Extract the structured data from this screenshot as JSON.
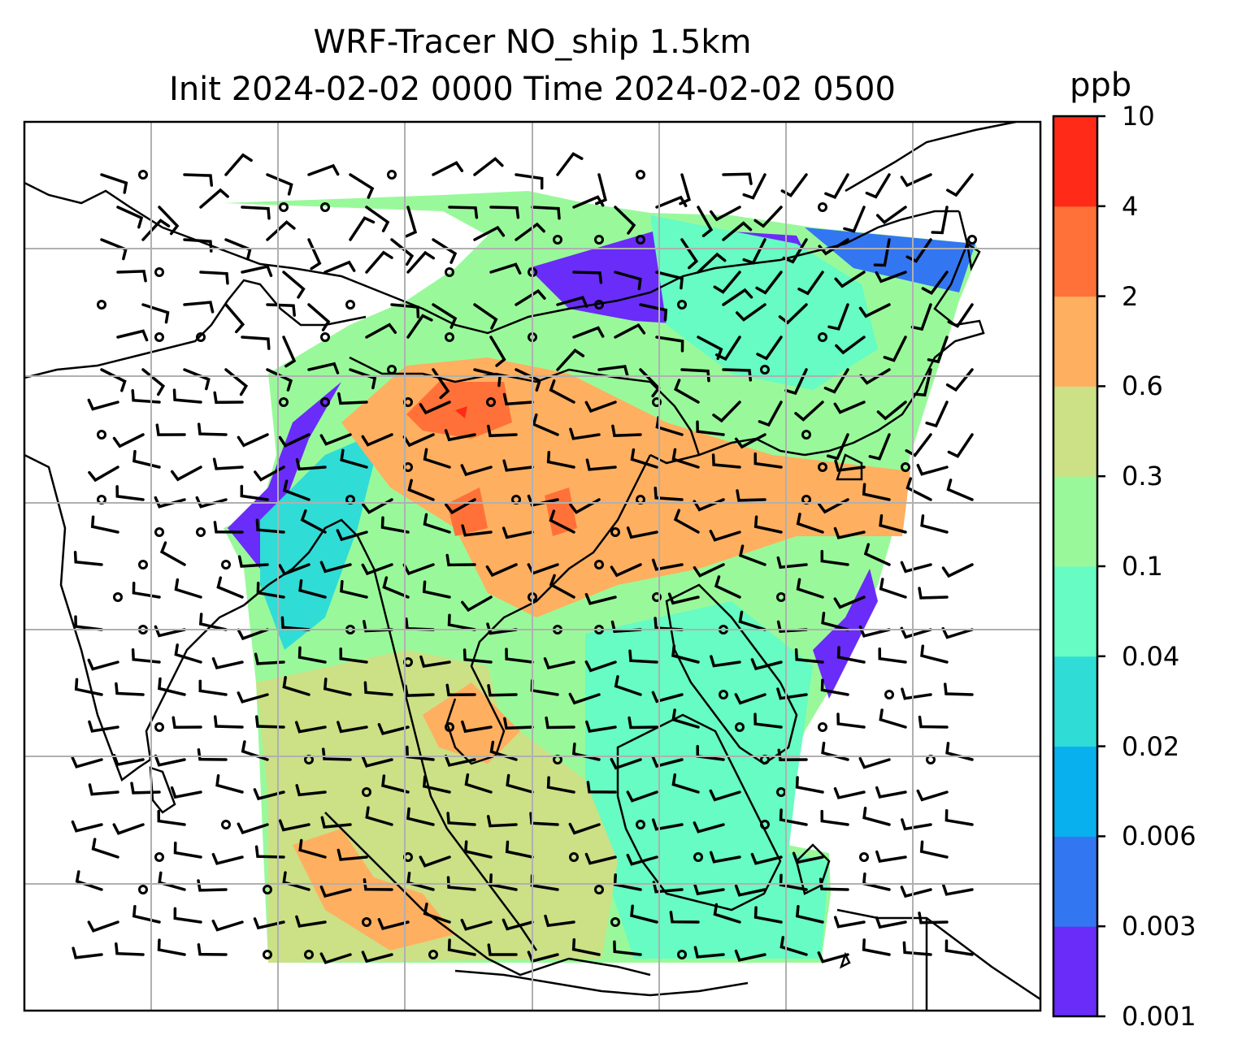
{
  "title": {
    "line1": "WRF-Tracer NO_ship 1.5km",
    "line2": "Init 2024-02-02 0000 Time 2024-02-02 0500"
  },
  "colorbar": {
    "unit": "ppb",
    "levels": [
      "0.001",
      "0.003",
      "0.006",
      "0.02",
      "0.04",
      "0.1",
      "0.3",
      "0.6",
      "2",
      "4",
      "10"
    ],
    "colors": [
      "#6a2cf8",
      "#3376f2",
      "#08b0ee",
      "#30dcd6",
      "#66fcc3",
      "#99f99a",
      "#cce086",
      "#ffaf60",
      "#ff7138",
      "#ff2b18"
    ]
  },
  "map": {
    "field": "NO_ship tracer at 1.5 km",
    "wind_barbs": true,
    "gridlines": true,
    "coastlines": true
  }
}
